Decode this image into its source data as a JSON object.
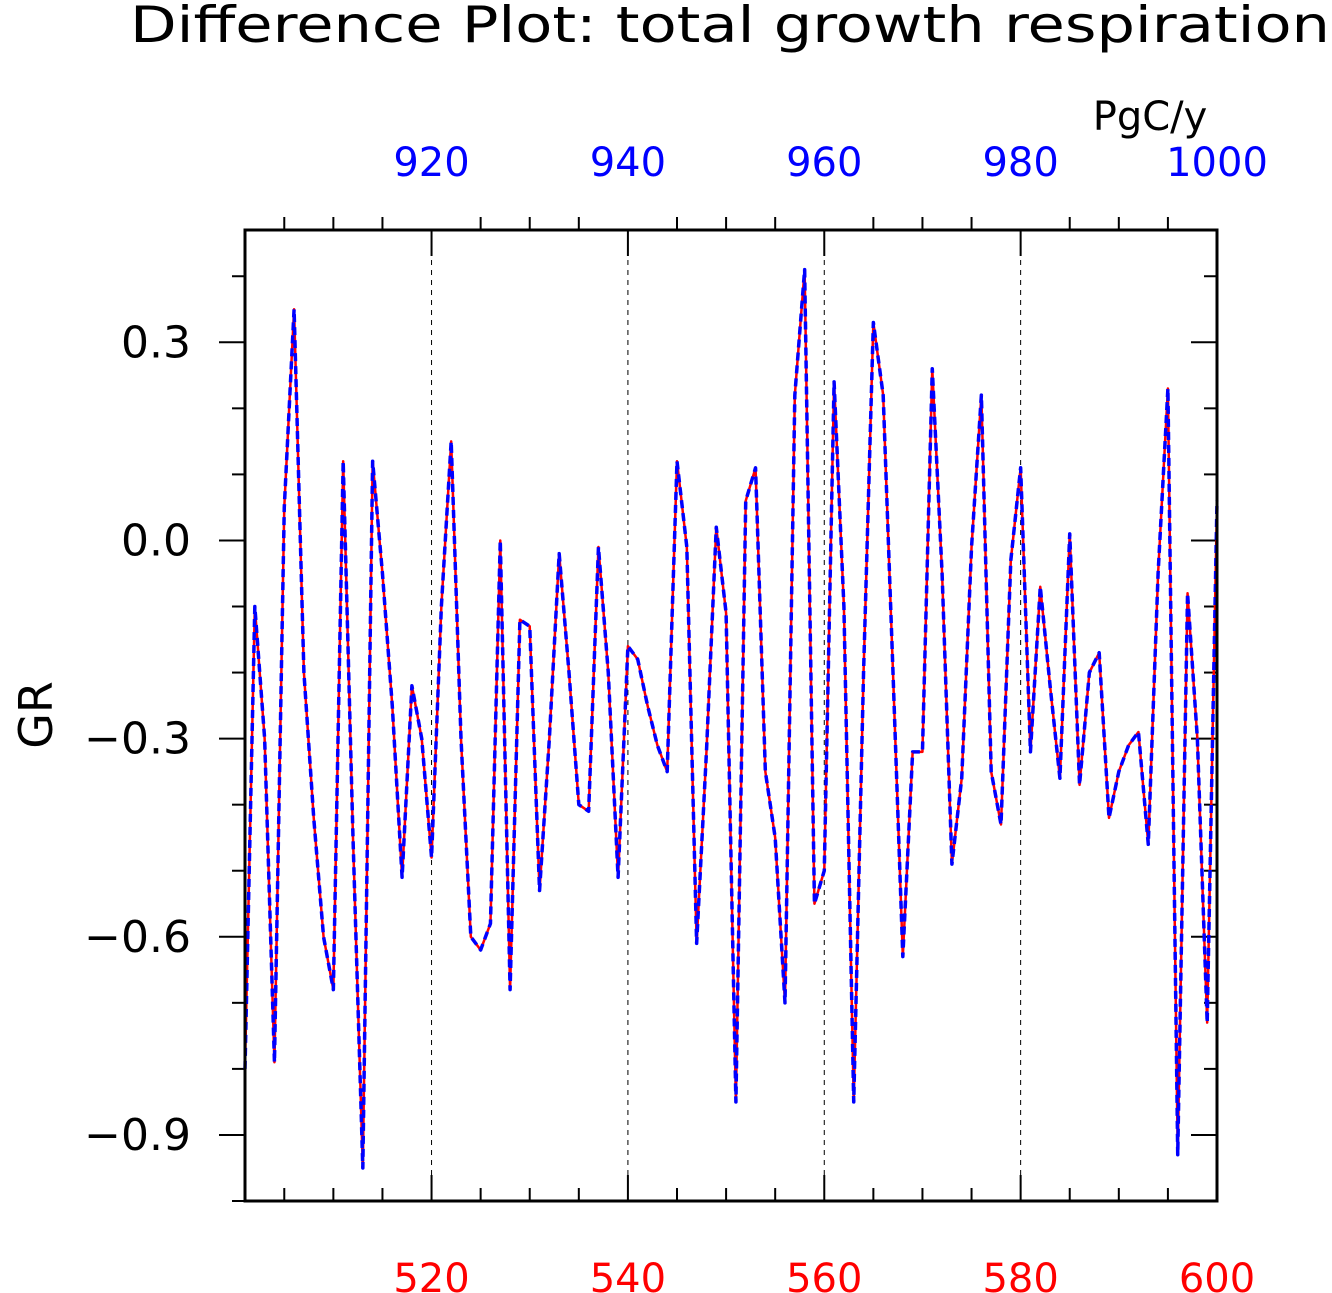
{
  "chart_data": {
    "type": "line",
    "title": "Difference Plot: total growth respiration",
    "units": "PgC/y",
    "ylabel": "GR",
    "xlim_bottom": [
      501,
      600
    ],
    "xlim_top": [
      901,
      1000
    ],
    "ylim": [
      -1.0,
      0.47
    ],
    "bottom_ticks": [
      "520",
      "540",
      "560",
      "580",
      "600"
    ],
    "top_ticks": [
      "920",
      "940",
      "960",
      "980",
      "1000"
    ],
    "y_ticks": [
      "0.3",
      "0.0",
      "−0.3",
      "−0.6",
      "−0.9"
    ],
    "y_tick_values": [
      0.3,
      0.0,
      -0.3,
      -0.6,
      -0.9
    ],
    "grid": "dashed vertical at major x ticks",
    "colors": {
      "series_bottom": "#ff0000",
      "series_top": "#0000ff",
      "axes": "#000000"
    },
    "series": [
      {
        "axis": "bottom",
        "x": [
          501,
          502,
          503,
          504,
          505,
          506,
          507,
          508,
          509,
          510,
          511,
          512,
          513,
          514,
          515,
          516,
          517,
          518,
          519,
          520,
          521,
          522,
          523,
          524,
          525,
          526,
          527,
          528,
          529,
          530,
          531,
          532,
          533,
          534,
          535,
          536,
          537,
          538,
          539,
          540,
          541,
          542,
          543,
          544,
          545,
          546,
          547,
          548,
          549,
          550,
          551,
          552,
          553,
          554,
          555,
          556,
          557,
          558,
          559,
          560,
          561,
          562,
          563,
          564,
          565,
          566,
          567,
          568,
          569,
          570,
          571,
          572,
          573,
          574,
          575,
          576,
          577,
          578,
          579,
          580,
          581,
          582,
          583,
          584,
          585,
          586,
          587,
          588,
          589,
          590,
          591,
          592,
          593,
          594,
          595,
          596,
          597,
          598,
          599,
          600
        ],
        "values": [
          -0.8,
          -0.1,
          -0.3,
          -0.79,
          0.05,
          0.35,
          -0.2,
          -0.42,
          -0.6,
          -0.68,
          0.12,
          -0.45,
          -0.95,
          0.12,
          -0.05,
          -0.25,
          -0.51,
          -0.22,
          -0.3,
          -0.48,
          -0.1,
          0.15,
          -0.3,
          -0.6,
          -0.62,
          -0.58,
          0.0,
          -0.68,
          -0.12,
          -0.13,
          -0.53,
          -0.3,
          -0.02,
          -0.2,
          -0.4,
          -0.41,
          -0.01,
          -0.2,
          -0.51,
          -0.16,
          -0.18,
          -0.25,
          -0.31,
          -0.35,
          0.12,
          -0.01,
          -0.61,
          -0.32,
          0.02,
          -0.11,
          -0.85,
          0.06,
          0.11,
          -0.35,
          -0.45,
          -0.7,
          0.22,
          0.41,
          -0.55,
          -0.5,
          0.24,
          -0.1,
          -0.85,
          -0.2,
          0.33,
          0.22,
          -0.2,
          -0.63,
          -0.32,
          -0.32,
          0.26,
          -0.05,
          -0.49,
          -0.36,
          -0.01,
          0.22,
          -0.35,
          -0.43,
          -0.03,
          0.11,
          -0.32,
          -0.07,
          -0.22,
          -0.36,
          0.01,
          -0.37,
          -0.2,
          -0.17,
          -0.42,
          -0.35,
          -0.31,
          -0.29,
          -0.46,
          -0.05,
          0.23,
          -0.93,
          -0.08,
          -0.3,
          -0.73,
          0.06
        ]
      },
      {
        "axis": "top",
        "x": [
          901,
          902,
          903,
          904,
          905,
          906,
          907,
          908,
          909,
          910,
          911,
          912,
          913,
          914,
          915,
          916,
          917,
          918,
          919,
          920,
          921,
          922,
          923,
          924,
          925,
          926,
          927,
          928,
          929,
          930,
          931,
          932,
          933,
          934,
          935,
          936,
          937,
          938,
          939,
          940,
          941,
          942,
          943,
          944,
          945,
          946,
          947,
          948,
          949,
          950,
          951,
          952,
          953,
          954,
          955,
          956,
          957,
          958,
          959,
          960,
          961,
          962,
          963,
          964,
          965,
          966,
          967,
          968,
          969,
          970,
          971,
          972,
          973,
          974,
          975,
          976,
          977,
          978,
          979,
          980,
          981,
          982,
          983,
          984,
          985,
          986,
          987,
          988,
          989,
          990,
          991,
          992,
          993,
          994,
          995,
          996,
          997,
          998,
          999,
          1000
        ],
        "values": [
          -0.8,
          -0.1,
          -0.3,
          -0.79,
          0.05,
          0.35,
          -0.2,
          -0.42,
          -0.6,
          -0.68,
          0.12,
          -0.45,
          -0.95,
          0.12,
          -0.05,
          -0.25,
          -0.51,
          -0.22,
          -0.3,
          -0.48,
          -0.1,
          0.15,
          -0.3,
          -0.6,
          -0.62,
          -0.58,
          0.0,
          -0.68,
          -0.12,
          -0.13,
          -0.53,
          -0.3,
          -0.02,
          -0.2,
          -0.4,
          -0.41,
          -0.01,
          -0.2,
          -0.51,
          -0.16,
          -0.18,
          -0.25,
          -0.31,
          -0.35,
          0.12,
          -0.01,
          -0.61,
          -0.32,
          0.02,
          -0.11,
          -0.85,
          0.06,
          0.11,
          -0.35,
          -0.45,
          -0.7,
          0.22,
          0.41,
          -0.55,
          -0.5,
          0.24,
          -0.1,
          -0.85,
          -0.2,
          0.33,
          0.22,
          -0.2,
          -0.63,
          -0.32,
          -0.32,
          0.26,
          -0.05,
          -0.49,
          -0.36,
          -0.01,
          0.22,
          -0.35,
          -0.43,
          -0.03,
          0.11,
          -0.32,
          -0.07,
          -0.22,
          -0.36,
          0.01,
          -0.37,
          -0.2,
          -0.17,
          -0.42,
          -0.35,
          -0.31,
          -0.29,
          -0.46,
          -0.05,
          0.23,
          -0.93,
          -0.08,
          -0.3,
          -0.73,
          0.06
        ]
      }
    ]
  }
}
